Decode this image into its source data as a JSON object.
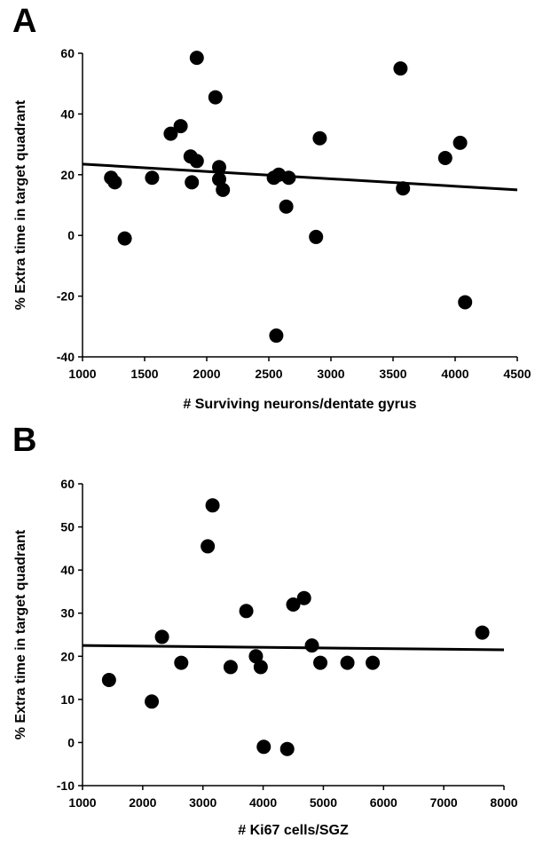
{
  "chart_data": [
    {
      "panel": "A",
      "type": "scatter",
      "xlabel": "# Surviving neurons/dentate gyrus",
      "ylabel": "% Extra time in target quadrant",
      "xlim": [
        1000,
        4500
      ],
      "ylim": [
        -40,
        60
      ],
      "xticks": [
        1000,
        1500,
        2000,
        2500,
        3000,
        3500,
        4000,
        4500
      ],
      "yticks": [
        -40,
        -20,
        0,
        20,
        40,
        60
      ],
      "points": [
        {
          "x": 1230,
          "y": 19
        },
        {
          "x": 1260,
          "y": 17.5
        },
        {
          "x": 1340,
          "y": -1
        },
        {
          "x": 1560,
          "y": 19
        },
        {
          "x": 1710,
          "y": 33.5
        },
        {
          "x": 1790,
          "y": 36
        },
        {
          "x": 1870,
          "y": 26
        },
        {
          "x": 1880,
          "y": 17.5
        },
        {
          "x": 1920,
          "y": 58.5
        },
        {
          "x": 1920,
          "y": 24.5
        },
        {
          "x": 2070,
          "y": 45.5
        },
        {
          "x": 2100,
          "y": 22.5
        },
        {
          "x": 2100,
          "y": 18.5
        },
        {
          "x": 2130,
          "y": 15
        },
        {
          "x": 2540,
          "y": 19
        },
        {
          "x": 2560,
          "y": -33
        },
        {
          "x": 2580,
          "y": 20
        },
        {
          "x": 2640,
          "y": 9.5
        },
        {
          "x": 2660,
          "y": 19
        },
        {
          "x": 2880,
          "y": -0.5
        },
        {
          "x": 2910,
          "y": 32
        },
        {
          "x": 3560,
          "y": 55
        },
        {
          "x": 3580,
          "y": 15.5
        },
        {
          "x": 3920,
          "y": 25.5
        },
        {
          "x": 4040,
          "y": 30.5
        },
        {
          "x": 4080,
          "y": -22
        }
      ],
      "trendline": {
        "x": [
          1000,
          4500
        ],
        "y": [
          23.5,
          15
        ]
      },
      "grid": false
    },
    {
      "panel": "B",
      "type": "scatter",
      "xlabel": "# Ki67 cells/SGZ",
      "ylabel": "% Extra time in target quadrant",
      "xlim": [
        1000,
        8000
      ],
      "ylim": [
        -10,
        60
      ],
      "xticks": [
        1000,
        2000,
        3000,
        4000,
        5000,
        6000,
        7000,
        8000
      ],
      "yticks": [
        -10,
        0,
        10,
        20,
        30,
        40,
        50,
        60
      ],
      "points": [
        {
          "x": 1440,
          "y": 14.5
        },
        {
          "x": 2150,
          "y": 9.5
        },
        {
          "x": 2320,
          "y": 24.5
        },
        {
          "x": 2640,
          "y": 18.5
        },
        {
          "x": 3080,
          "y": 45.5
        },
        {
          "x": 3160,
          "y": 55
        },
        {
          "x": 3460,
          "y": 17.5
        },
        {
          "x": 3720,
          "y": 30.5
        },
        {
          "x": 3880,
          "y": 20
        },
        {
          "x": 3960,
          "y": 17.5
        },
        {
          "x": 4010,
          "y": -1
        },
        {
          "x": 4400,
          "y": -1.5
        },
        {
          "x": 4500,
          "y": 32
        },
        {
          "x": 4680,
          "y": 33.5
        },
        {
          "x": 4810,
          "y": 22.5
        },
        {
          "x": 4950,
          "y": 18.5
        },
        {
          "x": 5400,
          "y": 18.5
        },
        {
          "x": 5820,
          "y": 18.5
        },
        {
          "x": 7640,
          "y": 25.5
        }
      ],
      "trendline": {
        "x": [
          1000,
          8000
        ],
        "y": [
          22.5,
          21.5
        ]
      },
      "grid": false
    }
  ]
}
